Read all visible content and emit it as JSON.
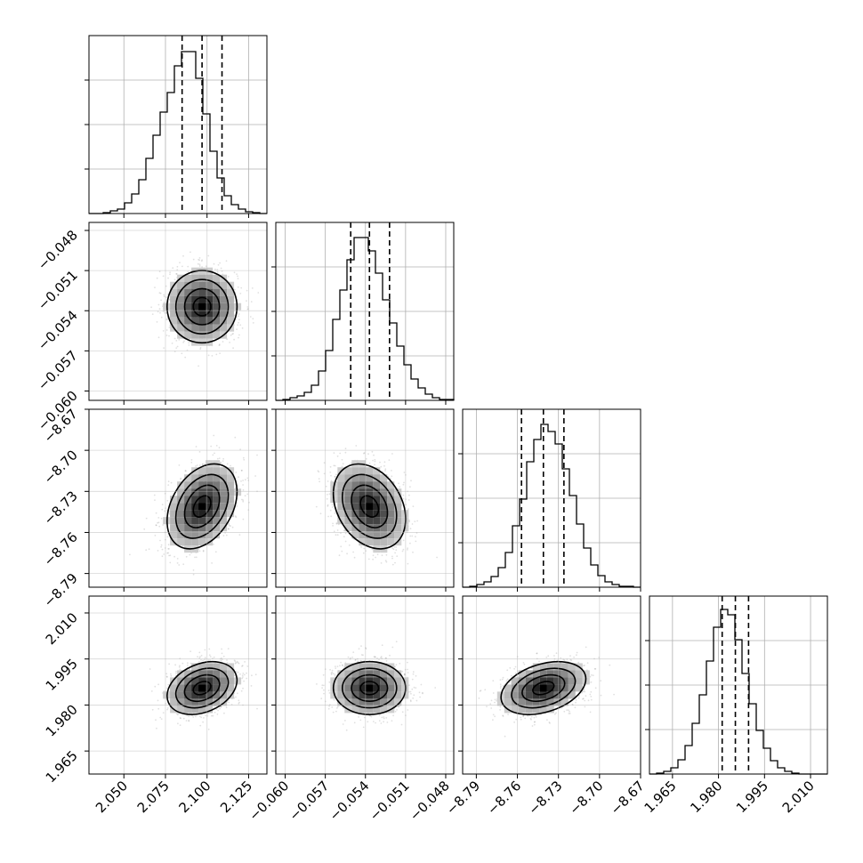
{
  "chart_data": {
    "type": "corner",
    "grid": true,
    "colors": {
      "frame": "#000000",
      "grid": "#b0b0b0",
      "samples": "#000000",
      "background": "#ffffff"
    },
    "parameters": [
      {
        "ticks": [
          "2.050",
          "2.075",
          "2.100",
          "2.125"
        ],
        "tick_values": [
          2.05,
          2.075,
          2.1,
          2.125
        ],
        "range": [
          2.029,
          2.136
        ],
        "mean": 2.097,
        "std": 0.0105,
        "quantiles": [
          2.085,
          2.097,
          2.109
        ],
        "offset_label": ""
      },
      {
        "ticks": [
          "−0.060",
          "−0.057",
          "−0.054",
          "−0.051",
          "−0.048"
        ],
        "tick_values": [
          -0.06,
          -0.057,
          -0.054,
          -0.051,
          -0.048
        ],
        "range": [
          -0.0607,
          -0.0474
        ],
        "mean": -0.0537,
        "std": 0.00135,
        "quantiles": [
          -0.0551,
          -0.0537,
          -0.0522
        ],
        "offset_label": ""
      },
      {
        "ticks": [
          "−8.79",
          "−8.76",
          "−8.73",
          "−8.70",
          "−8.67"
        ],
        "tick_values": [
          -8.79,
          -8.76,
          -8.73,
          -8.7,
          -8.67
        ],
        "range": [
          -8.8,
          -8.67
        ],
        "mean": -8.741,
        "std": 0.0155,
        "quantiles": [
          -8.757,
          -8.741,
          -8.726
        ],
        "offset_label": ""
      },
      {
        "ticks": [
          "1.965",
          "1.980",
          "1.995",
          "2.010"
        ],
        "tick_values": [
          1.965,
          1.98,
          1.995,
          2.01
        ],
        "range": [
          1.9575,
          2.0155
        ],
        "mean": 1.9855,
        "std": 0.0043,
        "quantiles": [
          1.9812,
          1.9855,
          1.9898
        ],
        "offset_label": ""
      }
    ],
    "histograms": [
      {
        "counts": [
          0,
          0,
          1,
          3,
          5,
          12,
          22,
          38,
          62,
          88,
          114,
          136,
          166,
          182,
          182,
          152,
          112,
          70,
          40,
          20,
          10,
          5,
          2,
          1,
          0
        ],
        "ylim": [
          0,
          200
        ]
      },
      {
        "counts": [
          0,
          1,
          3,
          5,
          9,
          17,
          33,
          56,
          91,
          124,
          158,
          183,
          183,
          168,
          143,
          113,
          87,
          61,
          40,
          24,
          14,
          7,
          3,
          1,
          1
        ],
        "ylim": [
          0,
          200
        ]
      },
      {
        "counts": [
          0,
          1,
          3,
          6,
          12,
          22,
          39,
          69,
          99,
          141,
          166,
          183,
          175,
          161,
          133,
          103,
          71,
          44,
          25,
          13,
          6,
          3,
          1,
          1,
          0
        ],
        "ylim": [
          0,
          200
        ]
      },
      {
        "counts": [
          0,
          1,
          3,
          7,
          16,
          32,
          57,
          89,
          127,
          165,
          185,
          179,
          151,
          113,
          79,
          49,
          29,
          15,
          7,
          3,
          1,
          0,
          0,
          0,
          0
        ],
        "ylim": [
          0,
          200
        ]
      }
    ],
    "pairs": [
      {
        "row": 1,
        "col": 0,
        "correlation": 0.0
      },
      {
        "row": 2,
        "col": 0,
        "correlation": 0.35
      },
      {
        "row": 2,
        "col": 1,
        "correlation": -0.3
      },
      {
        "row": 3,
        "col": 0,
        "correlation": 0.3
      },
      {
        "row": 3,
        "col": 1,
        "correlation": 0.0
      },
      {
        "row": 3,
        "col": 2,
        "correlation": 0.35
      }
    ],
    "contour_levels_sigma": [
      0.5,
      1.0,
      1.5,
      2.0
    ]
  }
}
